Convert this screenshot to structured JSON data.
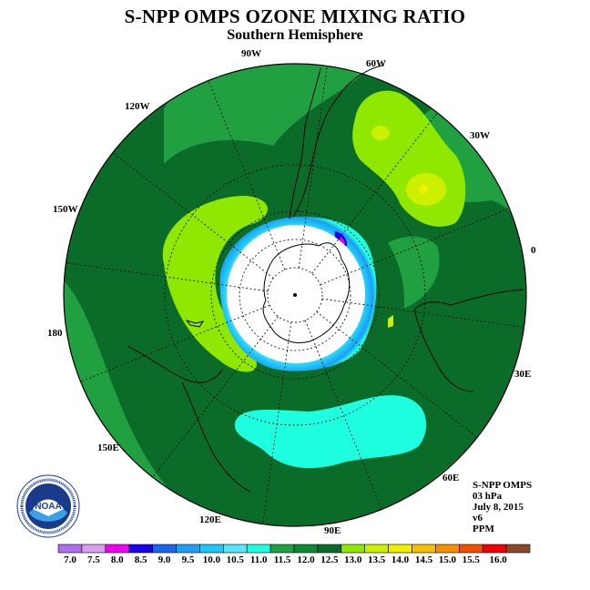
{
  "title": "S-NPP OMPS OZONE MIXING RATIO",
  "subtitle": "Southern Hemisphere",
  "lon_labels": [
    "90W",
    "60W",
    "120W",
    "30W",
    "150W",
    "0",
    "180",
    "30E",
    "150E",
    "60E",
    "120E",
    "90E"
  ],
  "info": {
    "instrument": "S-NPP OMPS",
    "pressure": "03 hPa",
    "date": "July 8, 2015",
    "version": "v6",
    "units": "PPM"
  },
  "logo": {
    "text": "NOAA",
    "icon": "noaa-logo"
  },
  "colorbar": {
    "ticks": [
      "7.0",
      "7.5",
      "8.0",
      "8.5",
      "9.0",
      "9.5",
      "10.0",
      "10.5",
      "11.0",
      "11.5",
      "12.0",
      "12.5",
      "13.0",
      "13.5",
      "14.0",
      "14.5",
      "15.0",
      "15.5",
      "16.0"
    ],
    "colors": [
      "#b06ef0",
      "#d9a0f0",
      "#f000f0",
      "#1a00ee",
      "#1a64f0",
      "#1e9ef5",
      "#1ec8fa",
      "#5ae6fa",
      "#1effe0",
      "#20a040",
      "#0e8a35",
      "#0a6c28",
      "#90e800",
      "#cdf000",
      "#f0f000",
      "#f5c000",
      "#f59000",
      "#f05000",
      "#f00000",
      "#8a4a2a"
    ]
  }
}
